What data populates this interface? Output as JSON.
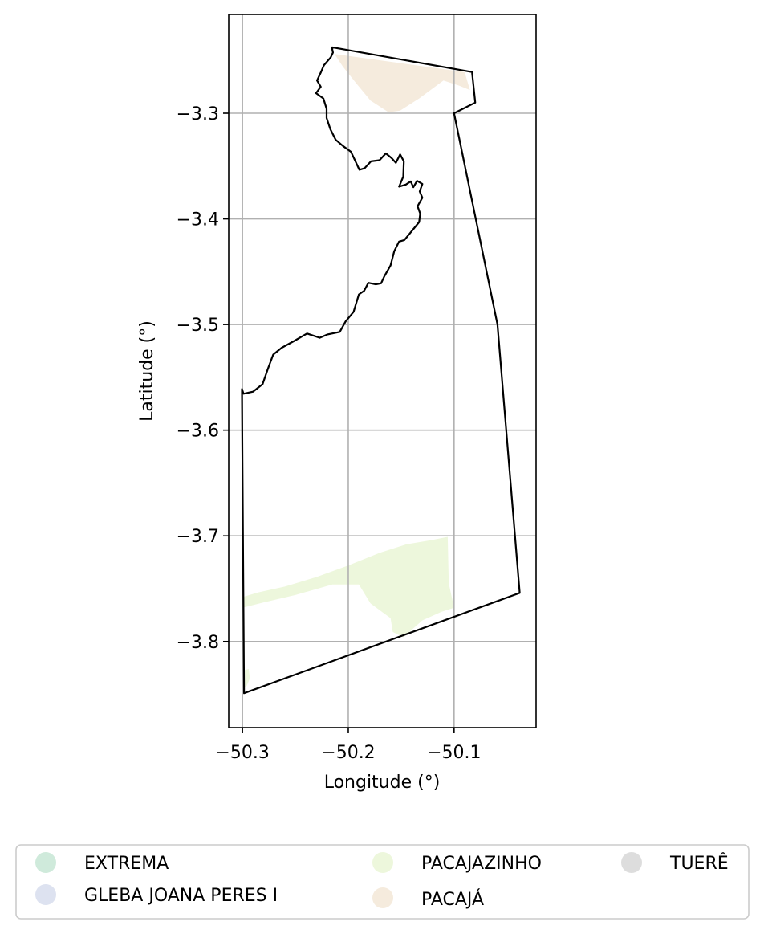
{
  "chart_data": {
    "type": "map",
    "xlabel": "Longitude (°)",
    "ylabel": "Latitude (°)",
    "xlim": [
      -50.313,
      -50.0225
    ],
    "ylim": [
      -3.8815,
      -3.2065
    ],
    "xticks": [
      -50.3,
      -50.2,
      -50.1
    ],
    "xtick_labels": [
      "−50.3",
      "−50.2",
      "−50.1"
    ],
    "yticks": [
      -3.3,
      -3.4,
      -3.5,
      -3.6,
      -3.7,
      -3.8
    ],
    "ytick_labels": [
      "−3.3",
      "−3.4",
      "−3.5",
      "−3.6",
      "−3.7",
      "−3.8"
    ],
    "grid": true,
    "legend": {
      "placement": "bottom",
      "columns": 3,
      "entries": [
        {
          "label": "EXTREMA",
          "color": "#cfeadb"
        },
        {
          "label": "GLEBA JOANA PERES I",
          "color": "#dde2f0"
        },
        {
          "label": "PACAJAZINHO",
          "color": "#edf7dc"
        },
        {
          "label": "PACAJÁ",
          "color": "#f5ebdd"
        },
        {
          "label": "TUERÊ",
          "color": "#dddddd"
        }
      ]
    },
    "boundary": {
      "color": "#000000",
      "points": [
        [
          -50.2155,
          -3.2375
        ],
        [
          -50.2145,
          -3.2425
        ],
        [
          -50.2165,
          -3.247
        ],
        [
          -50.223,
          -3.2545
        ],
        [
          -50.226,
          -3.2615
        ],
        [
          -50.2295,
          -3.269
        ],
        [
          -50.226,
          -3.275
        ],
        [
          -50.2305,
          -3.281
        ],
        [
          -50.2235,
          -3.286
        ],
        [
          -50.2205,
          -3.296
        ],
        [
          -50.2205,
          -3.3045
        ],
        [
          -50.217,
          -3.315
        ],
        [
          -50.212,
          -3.325
        ],
        [
          -50.205,
          -3.331
        ],
        [
          -50.1975,
          -3.3365
        ],
        [
          -50.1935,
          -3.345
        ],
        [
          -50.1895,
          -3.3535
        ],
        [
          -50.1845,
          -3.352
        ],
        [
          -50.1785,
          -3.3455
        ],
        [
          -50.1705,
          -3.3445
        ],
        [
          -50.1645,
          -3.338
        ],
        [
          -50.159,
          -3.3425
        ],
        [
          -50.155,
          -3.347
        ],
        [
          -50.151,
          -3.339
        ],
        [
          -50.1475,
          -3.3455
        ],
        [
          -50.148,
          -3.36
        ],
        [
          -50.152,
          -3.3695
        ],
        [
          -50.1455,
          -3.3675
        ],
        [
          -50.141,
          -3.3645
        ],
        [
          -50.1385,
          -3.37
        ],
        [
          -50.135,
          -3.364
        ],
        [
          -50.13,
          -3.367
        ],
        [
          -50.1325,
          -3.374
        ],
        [
          -50.13,
          -3.38
        ],
        [
          -50.1345,
          -3.388
        ],
        [
          -50.132,
          -3.395
        ],
        [
          -50.133,
          -3.403
        ],
        [
          -50.1395,
          -3.411
        ],
        [
          -50.147,
          -3.42
        ],
        [
          -50.152,
          -3.4215
        ],
        [
          -50.1565,
          -3.4305
        ],
        [
          -50.16,
          -3.444
        ],
        [
          -50.166,
          -3.4545
        ],
        [
          -50.169,
          -3.461
        ],
        [
          -50.174,
          -3.462
        ],
        [
          -50.181,
          -3.4605
        ],
        [
          -50.185,
          -3.468
        ],
        [
          -50.19,
          -3.4715
        ],
        [
          -50.195,
          -3.488
        ],
        [
          -50.2025,
          -3.497
        ],
        [
          -50.208,
          -3.507
        ],
        [
          -50.22,
          -3.5095
        ],
        [
          -50.227,
          -3.5125
        ],
        [
          -50.239,
          -3.5085
        ],
        [
          -50.251,
          -3.5155
        ],
        [
          -50.263,
          -3.522
        ],
        [
          -50.271,
          -3.5285
        ],
        [
          -50.276,
          -3.542
        ],
        [
          -50.281,
          -3.5565
        ],
        [
          -50.29,
          -3.5635
        ],
        [
          -50.299,
          -3.5655
        ],
        [
          -50.3005,
          -3.561
        ],
        [
          -50.2985,
          -3.849
        ],
        [
          -50.038,
          -3.754
        ],
        [
          -50.059,
          -3.5
        ],
        [
          -50.1,
          -3.3
        ],
        [
          -50.08,
          -3.29
        ],
        [
          -50.083,
          -3.261
        ],
        [
          -50.2155,
          -3.2375
        ]
      ]
    },
    "regions": [
      {
        "name": "PACAJÁ",
        "color": "#f5ebdd",
        "points": [
          [
            -50.213,
            -3.244
          ],
          [
            -50.09,
            -3.261
          ],
          [
            -50.085,
            -3.278
          ],
          [
            -50.095,
            -3.274
          ],
          [
            -50.11,
            -3.269
          ],
          [
            -50.133,
            -3.286
          ],
          [
            -50.151,
            -3.2975
          ],
          [
            -50.162,
            -3.299
          ],
          [
            -50.179,
            -3.288
          ],
          [
            -50.193,
            -3.271
          ],
          [
            -50.205,
            -3.256
          ]
        ]
      },
      {
        "name": "PACAJAZINHO",
        "color": "#edf7dc",
        "points": [
          [
            -50.3,
            -3.758
          ],
          [
            -50.285,
            -3.7535
          ],
          [
            -50.26,
            -3.748
          ],
          [
            -50.23,
            -3.739
          ],
          [
            -50.2,
            -3.728
          ],
          [
            -50.17,
            -3.716
          ],
          [
            -50.145,
            -3.708
          ],
          [
            -50.121,
            -3.704
          ],
          [
            -50.106,
            -3.701
          ],
          [
            -50.105,
            -3.745
          ],
          [
            -50.1,
            -3.768
          ],
          [
            -50.112,
            -3.772
          ],
          [
            -50.13,
            -3.78
          ],
          [
            -50.148,
            -3.796
          ],
          [
            -50.158,
            -3.791
          ],
          [
            -50.16,
            -3.778
          ],
          [
            -50.179,
            -3.764
          ],
          [
            -50.19,
            -3.746
          ],
          [
            -50.215,
            -3.746
          ],
          [
            -50.25,
            -3.756
          ],
          [
            -50.28,
            -3.763
          ],
          [
            -50.3,
            -3.768
          ]
        ]
      },
      {
        "name": "PACAJAZINHO",
        "color": "#edf7dc",
        "points": [
          [
            -50.298,
            -3.827
          ],
          [
            -50.294,
            -3.826
          ],
          [
            -50.293,
            -3.835
          ],
          [
            -50.296,
            -3.842
          ],
          [
            -50.2985,
            -3.844
          ]
        ]
      }
    ]
  }
}
